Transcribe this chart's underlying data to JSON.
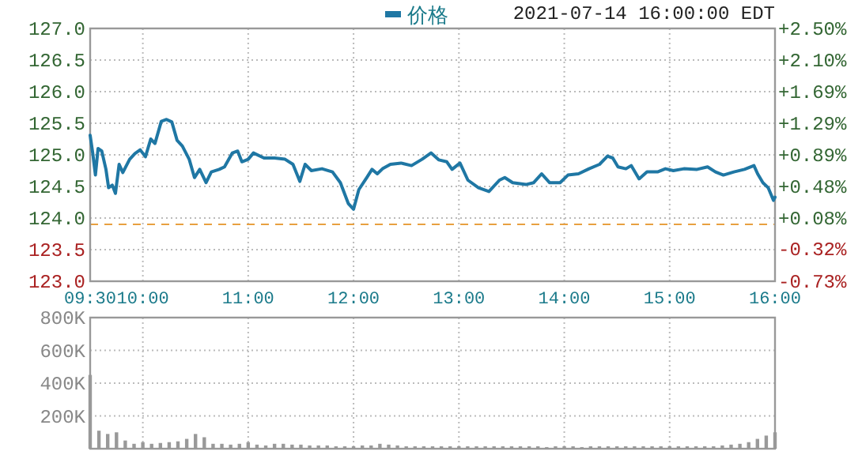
{
  "chart_data": [
    {
      "type": "line",
      "annotations": [
        "2021-07-14 16:00:00 EDT"
      ],
      "legend": "top",
      "grid": true,
      "y2label": null,
      "xlim": [
        9.5,
        16
      ],
      "xticks": [
        {
          "value": 9.5,
          "label": "09:30"
        },
        {
          "value": 10,
          "label": "10:00"
        },
        {
          "value": 11,
          "label": "11:00"
        },
        {
          "value": 12,
          "label": "12:00"
        },
        {
          "value": 13,
          "label": "13:00"
        },
        {
          "value": 14,
          "label": "14:00"
        },
        {
          "value": 15,
          "label": "15:00"
        },
        {
          "value": 16,
          "label": "16:00"
        }
      ],
      "ylim": [
        123,
        127
      ],
      "yticks": [
        {
          "value": 123,
          "label": "123.0"
        },
        {
          "value": 123.5,
          "label": "123.5"
        },
        {
          "value": 124,
          "label": "124.0"
        },
        {
          "value": 124.5,
          "label": "124.5"
        },
        {
          "value": 125,
          "label": "125.0"
        },
        {
          "value": 125.5,
          "label": "125.5"
        },
        {
          "value": 126,
          "label": "126.0"
        },
        {
          "value": 126.5,
          "label": "126.5"
        },
        {
          "value": 127,
          "label": "127.0"
        }
      ],
      "y2lim": [
        -0.73,
        2.5
      ],
      "y2ticks": [
        {
          "value": -0.73,
          "label": "-0.73%"
        },
        {
          "value": -0.32,
          "label": "-0.32%"
        },
        {
          "value": 0.08,
          "label": "+0.08%"
        },
        {
          "value": 0.48,
          "label": "+0.48%"
        },
        {
          "value": 0.89,
          "label": "+0.89%"
        },
        {
          "value": 1.29,
          "label": "+1.29%"
        },
        {
          "value": 1.69,
          "label": "+1.69%"
        },
        {
          "value": 2.1,
          "label": "+2.10%"
        },
        {
          "value": 2.5,
          "label": "+2.50%"
        }
      ],
      "ref_lines": [
        {
          "axis": "y",
          "value": 123.9,
          "color": "#e8a040",
          "line_style": "dashed"
        }
      ],
      "series": [
        {
          "name": "价格",
          "color": "#1f77a4",
          "x": [
            9.5,
            9.525,
            9.55,
            9.575,
            9.61,
            9.65,
            9.675,
            9.71,
            9.74,
            9.775,
            9.81,
            9.875,
            9.925,
            9.975,
            10.025,
            10.075,
            10.115,
            10.175,
            10.225,
            10.275,
            10.325,
            10.375,
            10.44,
            10.49,
            10.54,
            10.6,
            10.65,
            10.725,
            10.775,
            10.85,
            10.9,
            10.94,
            11.0,
            11.05,
            11.15,
            11.25,
            11.35,
            11.425,
            11.49,
            11.54,
            11.6,
            11.7,
            11.8,
            11.875,
            11.95,
            12.0,
            12.05,
            12.125,
            12.175,
            12.225,
            12.275,
            12.35,
            12.45,
            12.55,
            12.65,
            12.735,
            12.81,
            12.885,
            12.935,
            13.01,
            13.085,
            13.185,
            13.285,
            13.385,
            13.435,
            13.51,
            13.635,
            13.71,
            13.785,
            13.86,
            13.96,
            14.035,
            14.135,
            14.235,
            14.335,
            14.41,
            14.46,
            14.51,
            14.585,
            14.635,
            14.71,
            14.785,
            14.885,
            14.96,
            15.035,
            15.135,
            15.26,
            15.36,
            15.435,
            15.51,
            15.61,
            15.71,
            15.8,
            15.835,
            15.885,
            15.935,
            15.985,
            16.0
          ],
          "values": [
            125.31,
            125.02,
            124.68,
            125.1,
            125.06,
            124.77,
            124.48,
            124.52,
            124.39,
            124.85,
            124.72,
            124.93,
            125.02,
            125.08,
            124.97,
            125.25,
            125.18,
            125.53,
            125.56,
            125.52,
            125.23,
            125.14,
            124.93,
            124.64,
            124.77,
            124.56,
            124.73,
            124.77,
            124.81,
            125.03,
            125.06,
            124.89,
            124.93,
            125.03,
            124.95,
            124.95,
            124.93,
            124.85,
            124.58,
            124.85,
            124.75,
            124.78,
            124.73,
            124.56,
            124.23,
            124.14,
            124.45,
            124.64,
            124.77,
            124.7,
            124.78,
            124.85,
            124.87,
            124.83,
            124.93,
            125.03,
            124.92,
            124.89,
            124.77,
            124.87,
            124.6,
            124.48,
            124.42,
            124.6,
            124.64,
            124.56,
            124.53,
            124.56,
            124.7,
            124.56,
            124.56,
            124.68,
            124.7,
            124.78,
            124.85,
            124.98,
            124.95,
            124.81,
            124.78,
            124.83,
            124.62,
            124.73,
            124.73,
            124.78,
            124.75,
            124.78,
            124.77,
            124.81,
            124.73,
            124.68,
            124.73,
            124.77,
            124.83,
            124.7,
            124.56,
            124.48,
            124.28,
            124.33
          ]
        }
      ]
    },
    {
      "type": "bar",
      "grid": true,
      "tick_labels": "y",
      "color": "#999999",
      "x": [
        9.5,
        9.5833,
        9.6667,
        9.75,
        9.8333,
        9.9167,
        10,
        10.0833,
        10.1667,
        10.25,
        10.3333,
        10.4167,
        10.5,
        10.5833,
        10.6667,
        10.75,
        10.8333,
        10.9167,
        11,
        11.0833,
        11.1667,
        11.25,
        11.3333,
        11.4167,
        11.5,
        11.5833,
        11.6667,
        11.75,
        11.8333,
        11.9167,
        12,
        12.0833,
        12.1667,
        12.25,
        12.3333,
        12.4167,
        12.5,
        12.5833,
        12.6667,
        12.75,
        12.8333,
        12.9167,
        13,
        13.0833,
        13.1667,
        13.25,
        13.3333,
        13.4167,
        13.5,
        13.5833,
        13.6667,
        13.75,
        13.8333,
        13.9167,
        14,
        14.0833,
        14.1667,
        14.25,
        14.3333,
        14.4167,
        14.5,
        14.5833,
        14.6667,
        14.75,
        14.8333,
        14.9167,
        15,
        15.0833,
        15.1667,
        15.25,
        15.3333,
        15.4167,
        15.5,
        15.5833,
        15.6667,
        15.75,
        15.8333,
        15.9167,
        16
      ],
      "values": [
        450000,
        110000,
        90000,
        100000,
        50000,
        30000,
        40000,
        30000,
        35000,
        40000,
        45000,
        60000,
        90000,
        70000,
        30000,
        30000,
        25000,
        30000,
        40000,
        25000,
        20000,
        30000,
        30000,
        25000,
        25000,
        20000,
        20000,
        20000,
        15000,
        15000,
        15000,
        20000,
        20000,
        30000,
        25000,
        20000,
        15000,
        15000,
        15000,
        15000,
        15000,
        15000,
        15000,
        15000,
        15000,
        15000,
        15000,
        15000,
        15000,
        15000,
        15000,
        15000,
        10000,
        15000,
        15000,
        15000,
        10000,
        15000,
        15000,
        15000,
        15000,
        15000,
        15000,
        15000,
        15000,
        15000,
        15000,
        15000,
        15000,
        15000,
        15000,
        15000,
        20000,
        25000,
        30000,
        40000,
        60000,
        80000,
        100000
      ],
      "xlim": [
        9.5,
        16
      ],
      "xticks": [
        {
          "value": 9.5,
          "label": null
        },
        {
          "value": 10,
          "label": null
        },
        {
          "value": 11,
          "label": null
        },
        {
          "value": 12,
          "label": null
        },
        {
          "value": 13,
          "label": null
        },
        {
          "value": 14,
          "label": null
        },
        {
          "value": 15,
          "label": null
        },
        {
          "value": 16,
          "label": null
        }
      ],
      "ylim": [
        0,
        800000
      ],
      "yticks": [
        {
          "value": 200000,
          "label": "200K"
        },
        {
          "value": 400000,
          "label": "400K"
        },
        {
          "value": 600000,
          "label": "600K"
        },
        {
          "value": 800000,
          "label": "800K"
        }
      ]
    }
  ]
}
